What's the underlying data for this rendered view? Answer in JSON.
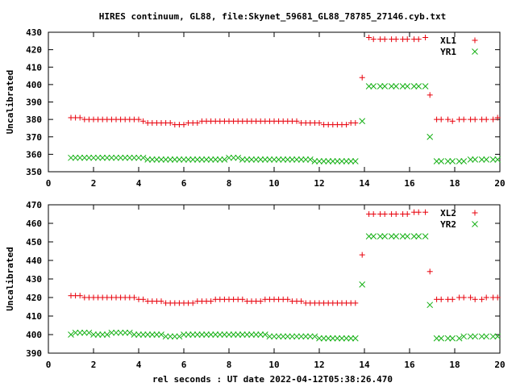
{
  "title": "HIRES continuum, GL88, file:Skynet_59681_GL88_78785_27146.cyb.txt",
  "xlabel": "rel seconds : UT date 2022-04-12T05:38:26.470",
  "colors": {
    "red": "#e8000b",
    "green": "#17b117"
  },
  "chart_data": [
    {
      "type": "scatter",
      "ylabel": "Uncalibrated",
      "xlim": [
        0,
        20
      ],
      "ylim": [
        350,
        430
      ],
      "xticks": [
        0,
        2,
        4,
        6,
        8,
        10,
        12,
        14,
        16,
        18,
        20
      ],
      "yticks": [
        350,
        360,
        370,
        380,
        390,
        400,
        410,
        420,
        430
      ],
      "legend_position": "top-right",
      "series": [
        {
          "name": "XL1",
          "marker": "plus",
          "color": "#e8000b",
          "x": [
            1.0,
            1.2,
            1.4,
            1.6,
            1.8,
            2.0,
            2.2,
            2.4,
            2.6,
            2.8,
            3.0,
            3.2,
            3.4,
            3.6,
            3.8,
            4.0,
            4.2,
            4.4,
            4.6,
            4.8,
            5.0,
            5.2,
            5.4,
            5.6,
            5.8,
            6.0,
            6.2,
            6.4,
            6.6,
            6.8,
            7.0,
            7.2,
            7.4,
            7.6,
            7.8,
            8.0,
            8.2,
            8.4,
            8.6,
            8.8,
            9.0,
            9.2,
            9.4,
            9.6,
            9.8,
            10.0,
            10.2,
            10.4,
            10.6,
            10.8,
            11.0,
            11.2,
            11.4,
            11.6,
            11.8,
            12.0,
            12.2,
            12.4,
            12.6,
            12.8,
            13.0,
            13.2,
            13.4,
            13.6,
            13.9,
            14.2,
            14.4,
            14.7,
            14.9,
            15.2,
            15.4,
            15.7,
            15.9,
            16.2,
            16.4,
            16.7,
            16.9,
            17.2,
            17.4,
            17.7,
            17.9,
            18.2,
            18.4,
            18.7,
            18.9,
            19.2,
            19.4,
            19.7,
            19.9
          ],
          "y": [
            381,
            381,
            381,
            380,
            380,
            380,
            380,
            380,
            380,
            380,
            380,
            380,
            380,
            380,
            380,
            380,
            379,
            378,
            378,
            378,
            378,
            378,
            378,
            377,
            377,
            377,
            378,
            378,
            378,
            379,
            379,
            379,
            379,
            379,
            379,
            379,
            379,
            379,
            379,
            379,
            379,
            379,
            379,
            379,
            379,
            379,
            379,
            379,
            379,
            379,
            379,
            378,
            378,
            378,
            378,
            378,
            377,
            377,
            377,
            377,
            377,
            377,
            378,
            378,
            404,
            427,
            426,
            426,
            426,
            426,
            426,
            426,
            426,
            426,
            426,
            427,
            394,
            380,
            380,
            380,
            379,
            380,
            380,
            380,
            380,
            380,
            380,
            380,
            381
          ]
        },
        {
          "name": "YR1",
          "marker": "cross",
          "color": "#17b117",
          "x": [
            1.0,
            1.2,
            1.4,
            1.6,
            1.8,
            2.0,
            2.2,
            2.4,
            2.6,
            2.8,
            3.0,
            3.2,
            3.4,
            3.6,
            3.8,
            4.0,
            4.2,
            4.4,
            4.6,
            4.8,
            5.0,
            5.2,
            5.4,
            5.6,
            5.8,
            6.0,
            6.2,
            6.4,
            6.6,
            6.8,
            7.0,
            7.2,
            7.4,
            7.6,
            7.8,
            8.0,
            8.2,
            8.4,
            8.6,
            8.8,
            9.0,
            9.2,
            9.4,
            9.6,
            9.8,
            10.0,
            10.2,
            10.4,
            10.6,
            10.8,
            11.0,
            11.2,
            11.4,
            11.6,
            11.8,
            12.0,
            12.2,
            12.4,
            12.6,
            12.8,
            13.0,
            13.2,
            13.4,
            13.6,
            13.9,
            14.2,
            14.4,
            14.7,
            14.9,
            15.2,
            15.4,
            15.7,
            15.9,
            16.2,
            16.4,
            16.7,
            16.9,
            17.2,
            17.4,
            17.7,
            17.9,
            18.2,
            18.4,
            18.7,
            18.9,
            19.2,
            19.4,
            19.7,
            19.9
          ],
          "y": [
            358,
            358,
            358,
            358,
            358,
            358,
            358,
            358,
            358,
            358,
            358,
            358,
            358,
            358,
            358,
            358,
            358,
            357,
            357,
            357,
            357,
            357,
            357,
            357,
            357,
            357,
            357,
            357,
            357,
            357,
            357,
            357,
            357,
            357,
            357,
            358,
            358,
            358,
            357,
            357,
            357,
            357,
            357,
            357,
            357,
            357,
            357,
            357,
            357,
            357,
            357,
            357,
            357,
            357,
            356,
            356,
            356,
            356,
            356,
            356,
            356,
            356,
            356,
            356,
            379,
            399,
            399,
            399,
            399,
            399,
            399,
            399,
            399,
            399,
            399,
            399,
            370,
            356,
            356,
            356,
            356,
            356,
            356,
            357,
            357,
            357,
            357,
            357,
            357
          ]
        }
      ]
    },
    {
      "type": "scatter",
      "ylabel": "Uncalibrated",
      "xlim": [
        0,
        20
      ],
      "ylim": [
        390,
        470
      ],
      "xticks": [
        0,
        2,
        4,
        6,
        8,
        10,
        12,
        14,
        16,
        18,
        20
      ],
      "yticks": [
        390,
        400,
        410,
        420,
        430,
        440,
        450,
        460,
        470
      ],
      "legend_position": "top-right",
      "series": [
        {
          "name": "XL2",
          "marker": "plus",
          "color": "#e8000b",
          "x": [
            1.0,
            1.2,
            1.4,
            1.6,
            1.8,
            2.0,
            2.2,
            2.4,
            2.6,
            2.8,
            3.0,
            3.2,
            3.4,
            3.6,
            3.8,
            4.0,
            4.2,
            4.4,
            4.6,
            4.8,
            5.0,
            5.2,
            5.4,
            5.6,
            5.8,
            6.0,
            6.2,
            6.4,
            6.6,
            6.8,
            7.0,
            7.2,
            7.4,
            7.6,
            7.8,
            8.0,
            8.2,
            8.4,
            8.6,
            8.8,
            9.0,
            9.2,
            9.4,
            9.6,
            9.8,
            10.0,
            10.2,
            10.4,
            10.6,
            10.8,
            11.0,
            11.2,
            11.4,
            11.6,
            11.8,
            12.0,
            12.2,
            12.4,
            12.6,
            12.8,
            13.0,
            13.2,
            13.4,
            13.6,
            13.9,
            14.2,
            14.4,
            14.7,
            14.9,
            15.2,
            15.4,
            15.7,
            15.9,
            16.2,
            16.4,
            16.7,
            16.9,
            17.2,
            17.4,
            17.7,
            17.9,
            18.2,
            18.4,
            18.7,
            18.9,
            19.2,
            19.4,
            19.7,
            19.9
          ],
          "y": [
            421,
            421,
            421,
            420,
            420,
            420,
            420,
            420,
            420,
            420,
            420,
            420,
            420,
            420,
            420,
            419,
            419,
            418,
            418,
            418,
            418,
            417,
            417,
            417,
            417,
            417,
            417,
            417,
            418,
            418,
            418,
            418,
            419,
            419,
            419,
            419,
            419,
            419,
            419,
            418,
            418,
            418,
            418,
            419,
            419,
            419,
            419,
            419,
            419,
            418,
            418,
            418,
            417,
            417,
            417,
            417,
            417,
            417,
            417,
            417,
            417,
            417,
            417,
            417,
            443,
            465,
            465,
            465,
            465,
            465,
            465,
            465,
            465,
            466,
            466,
            466,
            434,
            419,
            419,
            419,
            419,
            420,
            420,
            420,
            419,
            419,
            420,
            420,
            420
          ]
        },
        {
          "name": "YR2",
          "marker": "cross",
          "color": "#17b117",
          "x": [
            1.0,
            1.2,
            1.4,
            1.6,
            1.8,
            2.0,
            2.2,
            2.4,
            2.6,
            2.8,
            3.0,
            3.2,
            3.4,
            3.6,
            3.8,
            4.0,
            4.2,
            4.4,
            4.6,
            4.8,
            5.0,
            5.2,
            5.4,
            5.6,
            5.8,
            6.0,
            6.2,
            6.4,
            6.6,
            6.8,
            7.0,
            7.2,
            7.4,
            7.6,
            7.8,
            8.0,
            8.2,
            8.4,
            8.6,
            8.8,
            9.0,
            9.2,
            9.4,
            9.6,
            9.8,
            10.0,
            10.2,
            10.4,
            10.6,
            10.8,
            11.0,
            11.2,
            11.4,
            11.6,
            11.8,
            12.0,
            12.2,
            12.4,
            12.6,
            12.8,
            13.0,
            13.2,
            13.4,
            13.6,
            13.9,
            14.2,
            14.4,
            14.7,
            14.9,
            15.2,
            15.4,
            15.7,
            15.9,
            16.2,
            16.4,
            16.7,
            16.9,
            17.2,
            17.4,
            17.7,
            17.9,
            18.2,
            18.4,
            18.7,
            18.9,
            19.2,
            19.4,
            19.7,
            19.9
          ],
          "y": [
            400,
            401,
            401,
            401,
            401,
            400,
            400,
            400,
            400,
            401,
            401,
            401,
            401,
            401,
            400,
            400,
            400,
            400,
            400,
            400,
            400,
            399,
            399,
            399,
            399,
            400,
            400,
            400,
            400,
            400,
            400,
            400,
            400,
            400,
            400,
            400,
            400,
            400,
            400,
            400,
            400,
            400,
            400,
            400,
            399,
            399,
            399,
            399,
            399,
            399,
            399,
            399,
            399,
            399,
            399,
            398,
            398,
            398,
            398,
            398,
            398,
            398,
            398,
            398,
            427,
            453,
            453,
            453,
            453,
            453,
            453,
            453,
            453,
            453,
            453,
            453,
            416,
            398,
            398,
            398,
            398,
            398,
            399,
            399,
            399,
            399,
            399,
            399,
            399
          ]
        }
      ]
    }
  ]
}
